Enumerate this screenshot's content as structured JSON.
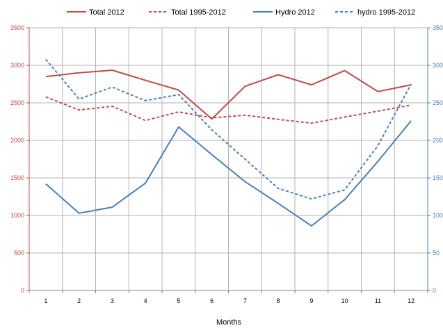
{
  "chart_data": {
    "type": "line",
    "title": "",
    "xlabel": "Months",
    "ylabel_left": "",
    "ylabel_right": "",
    "categories": [
      "1",
      "2",
      "3",
      "4",
      "5",
      "6",
      "7",
      "8",
      "9",
      "10",
      "11",
      "12"
    ],
    "ylim_left": [
      0,
      3500
    ],
    "ylim_right": [
      0,
      350
    ],
    "yticks_left": [
      "0",
      "500",
      "1000",
      "1500",
      "2000",
      "2500",
      "3000",
      "3500"
    ],
    "yticks_right": [
      "0",
      "50",
      "100",
      "150",
      "200",
      "250",
      "300",
      "350"
    ],
    "grid": true,
    "legend_position": "top",
    "left_axis_color": "#be4b48",
    "right_axis_color": "#4a7ebb",
    "series": [
      {
        "name": "Total 2012",
        "axis": "left",
        "style": "solid",
        "color": "#be4b48",
        "values": [
          2850,
          2900,
          2935,
          2800,
          2670,
          2285,
          2720,
          2875,
          2740,
          2930,
          2650,
          2740
        ]
      },
      {
        "name": "Total 1995-2012",
        "axis": "left",
        "style": "dashed",
        "color": "#be4b48",
        "values": [
          2580,
          2405,
          2455,
          2265,
          2380,
          2300,
          2335,
          2280,
          2230,
          2310,
          2390,
          2470
        ]
      },
      {
        "name": "Hydro 2012",
        "axis": "right",
        "style": "solid",
        "color": "#4a7ebb",
        "values": [
          142,
          103,
          111,
          143,
          218,
          181,
          145,
          116,
          86,
          121,
          172,
          226
        ]
      },
      {
        "name": "hydro 1995-2012",
        "axis": "right",
        "style": "dashed",
        "color": "#4a7ebb",
        "values": [
          308,
          255,
          271,
          253,
          261,
          214,
          175,
          136,
          122,
          134,
          193,
          275
        ]
      }
    ]
  }
}
